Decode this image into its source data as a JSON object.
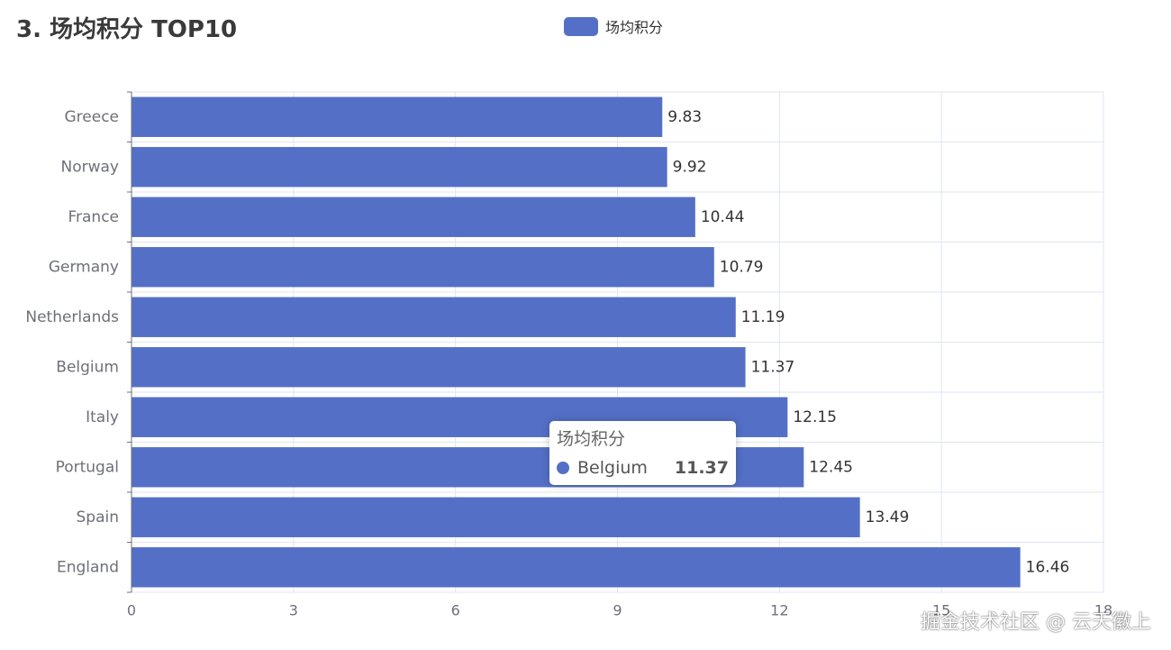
{
  "colors": {
    "series": "#5470c6",
    "grid": "#e0e6f1",
    "axis": "#6e7079",
    "label": "#333333"
  },
  "chart_data": {
    "type": "bar",
    "orientation": "horizontal",
    "title": "3. 场均积分 TOP10",
    "categories": [
      "England",
      "Spain",
      "Portugal",
      "Italy",
      "Belgium",
      "Netherlands",
      "Germany",
      "France",
      "Norway",
      "Greece"
    ],
    "series": [
      {
        "name": "场均积分",
        "values": [
          16.46,
          13.49,
          12.45,
          12.15,
          11.37,
          11.19,
          10.79,
          10.44,
          9.92,
          9.83
        ]
      }
    ],
    "xlim": [
      0,
      18
    ],
    "xticks": [
      0,
      3,
      6,
      9,
      12,
      15,
      18
    ],
    "grid": true,
    "legend": "top-center",
    "data_labels": true
  },
  "tooltip": {
    "title": "场均积分",
    "name": "Belgium",
    "value": "11.37"
  },
  "watermark": "掘金技术社区 @ 云天徽上"
}
